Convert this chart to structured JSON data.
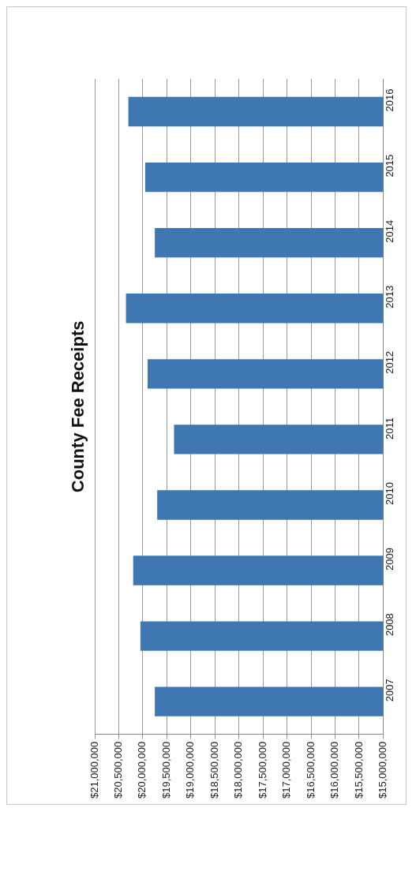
{
  "chart_data": {
    "type": "bar",
    "orientation": "horizontal",
    "title": "County Fee Receipts",
    "categories": [
      "2016",
      "2015",
      "2014",
      "2013",
      "2012",
      "2011",
      "2010",
      "2009",
      "2008",
      "2007"
    ],
    "values": [
      20300000,
      19950000,
      19750000,
      20350000,
      19900000,
      19350000,
      19700000,
      20200000,
      20050000,
      19750000
    ],
    "color": "#3f77b3",
    "xlim": [
      21000000,
      15000000
    ],
    "xticks": [
      {
        "value": 21000000,
        "label": "$21,000,000"
      },
      {
        "value": 20500000,
        "label": "$20,500,000"
      },
      {
        "value": 20000000,
        "label": "$20,000,000"
      },
      {
        "value": 19500000,
        "label": "$19,500,000"
      },
      {
        "value": 19000000,
        "label": "$19,000,000"
      },
      {
        "value": 18500000,
        "label": "$18,500,000"
      },
      {
        "value": 18000000,
        "label": "$18,000,000"
      },
      {
        "value": 17500000,
        "label": "$17,500,000"
      },
      {
        "value": 17000000,
        "label": "$17,000,000"
      },
      {
        "value": 16500000,
        "label": "$16,500,000"
      },
      {
        "value": 16000000,
        "label": "$16,000,000"
      },
      {
        "value": 15500000,
        "label": "$15,500,000"
      },
      {
        "value": 15000000,
        "label": "$15,000,000"
      }
    ],
    "grid": "x"
  }
}
